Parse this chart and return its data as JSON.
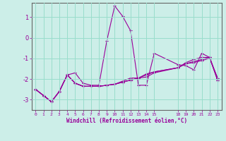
{
  "xlabel": "Windchill (Refroidissement éolien,°C)",
  "bg_color": "#cceee8",
  "grid_color": "#99ddcc",
  "line_color": "#990099",
  "xlim": [
    -0.5,
    23.5
  ],
  "ylim": [
    -3.5,
    1.7
  ],
  "xticks": [
    0,
    1,
    2,
    3,
    4,
    5,
    6,
    7,
    8,
    9,
    10,
    11,
    12,
    13,
    14,
    15,
    18,
    19,
    20,
    21,
    22,
    23
  ],
  "yticks": [
    -3,
    -2,
    -1,
    0,
    1
  ],
  "s1_x": [
    0,
    1,
    2,
    3,
    4,
    5,
    6,
    7,
    8,
    9,
    10,
    11,
    12,
    13,
    14,
    15,
    18,
    19,
    20,
    21,
    22,
    23
  ],
  "s1_y": [
    -2.5,
    -2.8,
    -3.1,
    -2.6,
    -1.8,
    -1.7,
    -2.2,
    -2.3,
    -2.3,
    -0.15,
    1.55,
    1.05,
    0.35,
    -2.3,
    -2.3,
    -0.75,
    -1.3,
    -1.35,
    -1.55,
    -0.75,
    -0.95,
    -2.05
  ],
  "s2_x": [
    0,
    1,
    2,
    3,
    4,
    5,
    6,
    7,
    8,
    9,
    10,
    11,
    12,
    13,
    14,
    15,
    18,
    19,
    20,
    21,
    22,
    23
  ],
  "s2_y": [
    -2.5,
    -2.8,
    -3.1,
    -2.6,
    -1.8,
    -2.2,
    -2.35,
    -2.35,
    -2.35,
    -2.3,
    -2.25,
    -2.15,
    -2.05,
    -1.95,
    -1.75,
    -1.65,
    -1.45,
    -1.25,
    -1.15,
    -1.05,
    -0.95,
    -2.05
  ],
  "s3_x": [
    0,
    1,
    2,
    3,
    4,
    5,
    6,
    7,
    8,
    9,
    10,
    11,
    12,
    13,
    14,
    15,
    18,
    19,
    20,
    21,
    22,
    23
  ],
  "s3_y": [
    -2.5,
    -2.8,
    -3.1,
    -2.6,
    -1.8,
    -2.2,
    -2.35,
    -2.35,
    -2.35,
    -2.3,
    -2.25,
    -2.15,
    -2.05,
    -1.95,
    -1.8,
    -1.65,
    -1.45,
    -1.25,
    -1.2,
    -1.1,
    -1.0,
    -1.95
  ],
  "s4_x": [
    0,
    1,
    2,
    3,
    4,
    5,
    6,
    7,
    8,
    9,
    10,
    11,
    12,
    13,
    14,
    15,
    18,
    19,
    20,
    21,
    22,
    23
  ],
  "s4_y": [
    -2.5,
    -2.8,
    -3.1,
    -2.6,
    -1.8,
    -2.2,
    -2.35,
    -2.35,
    -2.35,
    -2.3,
    -2.25,
    -2.1,
    -1.95,
    -1.95,
    -1.9,
    -1.7,
    -1.45,
    -1.2,
    -1.05,
    -0.95,
    -0.95,
    -1.95
  ]
}
